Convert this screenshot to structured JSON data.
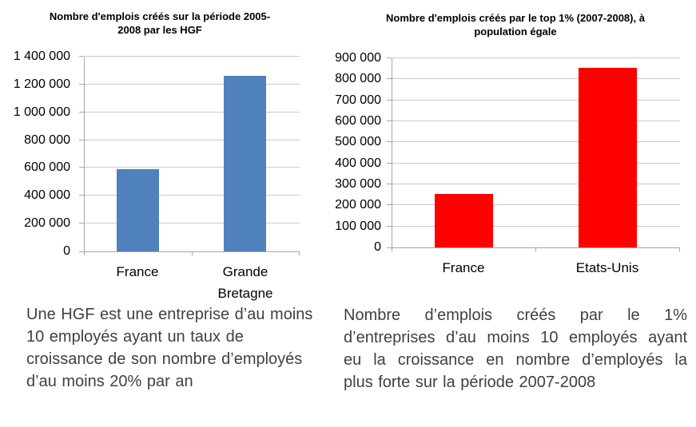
{
  "page": {
    "background": "#ffffff"
  },
  "colors": {
    "left_bar": "#4F81BD",
    "right_bar": "#FF0000",
    "gridline": "#C9C9C9",
    "axis": "#A6A6A6",
    "title_text": "#000000",
    "caption_text": "#404040"
  },
  "chart_data": [
    {
      "type": "bar",
      "title": "Nombre d'emplois créés sur la période 2005-2008 par les HGF",
      "title_lines": [
        "Nombre d'emplois créés sur la période 2005-",
        "2008 par les HGF"
      ],
      "categories": [
        "France",
        "Grande Bretagne"
      ],
      "values": [
        590000,
        1260000
      ],
      "bar_color": "#4F81BD",
      "xlabel": "",
      "ylabel": "",
      "ylim": [
        0,
        1400000
      ],
      "ytick_step": 200000,
      "ytick_labels": [
        "0",
        "200 000",
        "400 000",
        "600 000",
        "800 000",
        "1 000 000",
        "1 200 000",
        "1 400 000"
      ],
      "grid": true,
      "legend": "none"
    },
    {
      "type": "bar",
      "title": "Nombre d'emplois créés par le top 1% (2007-2008), à population égale",
      "title_lines": [
        "Nombre d'emplois créés par le top 1% (2007-2008), à",
        "population égale"
      ],
      "categories": [
        "France",
        "Etats-Unis"
      ],
      "values": [
        255000,
        855000
      ],
      "bar_color": "#FF0000",
      "xlabel": "",
      "ylabel": "",
      "ylim": [
        0,
        900000
      ],
      "ytick_step": 100000,
      "ytick_labels": [
        "0",
        "100 000",
        "200 000",
        "300 000",
        "400 000",
        "500 000",
        "600 000",
        "700 000",
        "800 000",
        "900 000"
      ],
      "grid": true,
      "legend": "none"
    }
  ],
  "captions": {
    "left": {
      "justify": false,
      "lines": [
        "Une HGF est une entreprise  d’au moins",
        "10 employés ayant un taux de",
        "croissance de son nombre d’employés",
        "d’au moins 20% par an"
      ]
    },
    "right": {
      "justify": true,
      "lines": [
        "Nombre d’emplois créés par le 1%",
        "d’entreprises d’au moins 10 employés ayant",
        "eu la croissance en nombre d’employés la",
        "plus forte sur la période 2007-2008"
      ]
    }
  }
}
